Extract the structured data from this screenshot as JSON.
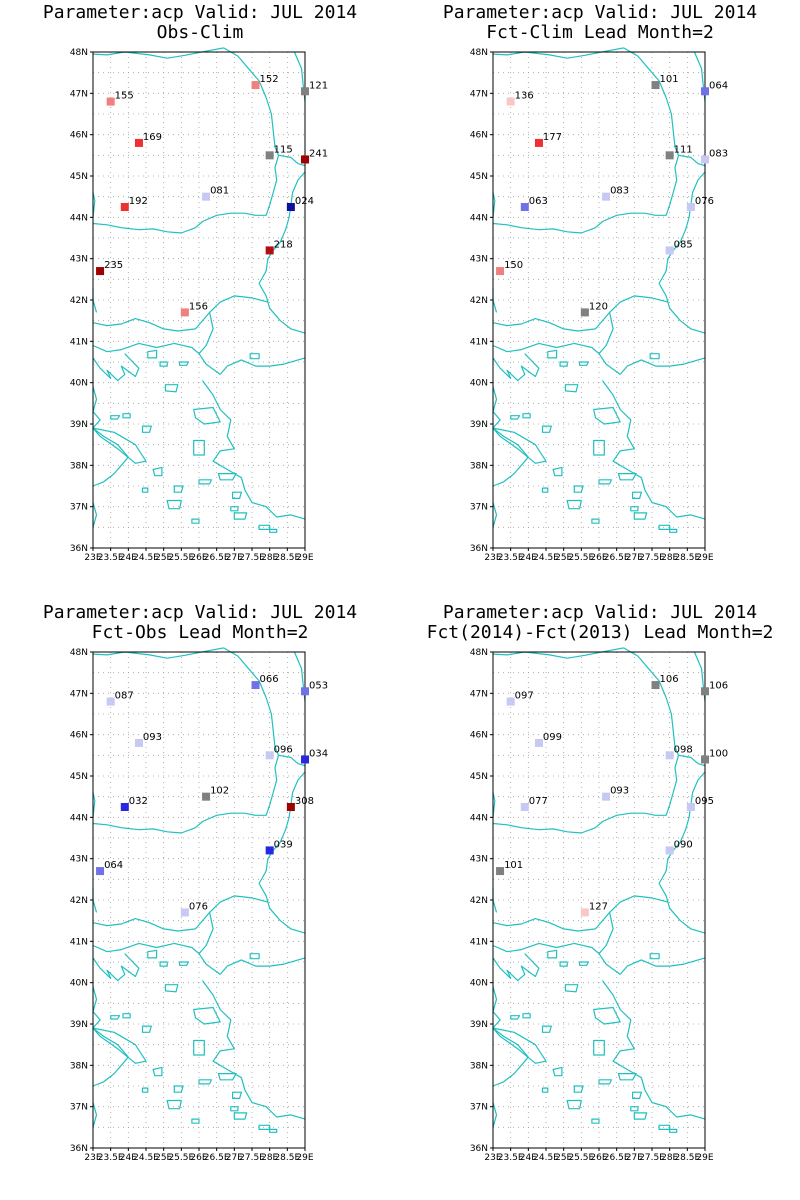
{
  "panels": [
    {
      "title_line1": "Parameter:acp Valid: JUL 2014",
      "title_line2": "Obs-Clim",
      "stations": [
        {
          "lon": 23.5,
          "lat": 46.8,
          "label": "155",
          "color": "#f08080"
        },
        {
          "lon": 27.6,
          "lat": 47.2,
          "label": "152",
          "color": "#f08080"
        },
        {
          "lon": 29.0,
          "lat": 47.05,
          "label": "121",
          "color": "#808080"
        },
        {
          "lon": 24.3,
          "lat": 45.8,
          "label": "169",
          "color": "#ee3030"
        },
        {
          "lon": 28.0,
          "lat": 45.5,
          "label": "115",
          "color": "#808080"
        },
        {
          "lon": 29.0,
          "lat": 45.4,
          "label": "241",
          "color": "#a00000"
        },
        {
          "lon": 26.2,
          "lat": 44.5,
          "label": "081",
          "color": "#c8c8f4"
        },
        {
          "lon": 23.9,
          "lat": 44.25,
          "label": "192",
          "color": "#ee3030"
        },
        {
          "lon": 28.6,
          "lat": 44.25,
          "label": "024",
          "color": "#1010a0"
        },
        {
          "lon": 28.0,
          "lat": 43.2,
          "label": "218",
          "color": "#b01010"
        },
        {
          "lon": 23.2,
          "lat": 42.7,
          "label": "235",
          "color": "#a00000"
        },
        {
          "lon": 25.6,
          "lat": 41.7,
          "label": "156",
          "color": "#f08080"
        }
      ]
    },
    {
      "title_line1": "Parameter:acp Valid: JUL 2014",
      "title_line2": "Fct-Clim Lead Month=2",
      "stations": [
        {
          "lon": 23.5,
          "lat": 46.8,
          "label": "136",
          "color": "#f8c8c8"
        },
        {
          "lon": 27.6,
          "lat": 47.2,
          "label": "101",
          "color": "#808080"
        },
        {
          "lon": 29.0,
          "lat": 47.05,
          "label": "064",
          "color": "#7070e8"
        },
        {
          "lon": 24.3,
          "lat": 45.8,
          "label": "177",
          "color": "#ee3030"
        },
        {
          "lon": 28.0,
          "lat": 45.5,
          "label": "111",
          "color": "#808080"
        },
        {
          "lon": 29.0,
          "lat": 45.4,
          "label": "083",
          "color": "#c8c8f4"
        },
        {
          "lon": 26.2,
          "lat": 44.5,
          "label": "083",
          "color": "#c8c8f4"
        },
        {
          "lon": 23.9,
          "lat": 44.25,
          "label": "063",
          "color": "#7070e8"
        },
        {
          "lon": 28.6,
          "lat": 44.25,
          "label": "076",
          "color": "#c8c8f4"
        },
        {
          "lon": 28.0,
          "lat": 43.2,
          "label": "085",
          "color": "#c8c8f4"
        },
        {
          "lon": 23.2,
          "lat": 42.7,
          "label": "150",
          "color": "#f08080"
        },
        {
          "lon": 25.6,
          "lat": 41.7,
          "label": "120",
          "color": "#808080"
        }
      ]
    },
    {
      "title_line1": "Parameter:acp Valid: JUL 2014",
      "title_line2": "Fct-Obs Lead Month=2",
      "stations": [
        {
          "lon": 23.5,
          "lat": 46.8,
          "label": "087",
          "color": "#c8c8f4"
        },
        {
          "lon": 27.6,
          "lat": 47.2,
          "label": "066",
          "color": "#7070e8"
        },
        {
          "lon": 29.0,
          "lat": 47.05,
          "label": "053",
          "color": "#7070e8"
        },
        {
          "lon": 24.3,
          "lat": 45.8,
          "label": "093",
          "color": "#c8c8f4"
        },
        {
          "lon": 28.0,
          "lat": 45.5,
          "label": "096",
          "color": "#c8c8f4"
        },
        {
          "lon": 29.0,
          "lat": 45.4,
          "label": "034",
          "color": "#2828e0"
        },
        {
          "lon": 26.2,
          "lat": 44.5,
          "label": "102",
          "color": "#808080"
        },
        {
          "lon": 23.9,
          "lat": 44.25,
          "label": "032",
          "color": "#2828e0"
        },
        {
          "lon": 28.6,
          "lat": 44.25,
          "label": "308",
          "color": "#a00000"
        },
        {
          "lon": 28.0,
          "lat": 43.2,
          "label": "039",
          "color": "#2828e0"
        },
        {
          "lon": 23.2,
          "lat": 42.7,
          "label": "064",
          "color": "#7070e8"
        },
        {
          "lon": 25.6,
          "lat": 41.7,
          "label": "076",
          "color": "#c8c8f4"
        }
      ]
    },
    {
      "title_line1": "Parameter:acp Valid: JUL 2014",
      "title_line2": "Fct(2014)-Fct(2013) Lead Month=2",
      "stations": [
        {
          "lon": 23.5,
          "lat": 46.8,
          "label": "097",
          "color": "#c8c8f4"
        },
        {
          "lon": 27.6,
          "lat": 47.2,
          "label": "106",
          "color": "#808080"
        },
        {
          "lon": 29.0,
          "lat": 47.05,
          "label": "106",
          "color": "#808080"
        },
        {
          "lon": 24.3,
          "lat": 45.8,
          "label": "099",
          "color": "#c8c8f4"
        },
        {
          "lon": 28.0,
          "lat": 45.5,
          "label": "098",
          "color": "#c8c8f4"
        },
        {
          "lon": 29.0,
          "lat": 45.4,
          "label": "100",
          "color": "#808080"
        },
        {
          "lon": 26.2,
          "lat": 44.5,
          "label": "093",
          "color": "#c8c8f4"
        },
        {
          "lon": 23.9,
          "lat": 44.25,
          "label": "077",
          "color": "#c8c8f4"
        },
        {
          "lon": 28.6,
          "lat": 44.25,
          "label": "095",
          "color": "#c8c8f4"
        },
        {
          "lon": 28.0,
          "lat": 43.2,
          "label": "090",
          "color": "#c8c8f4"
        },
        {
          "lon": 23.2,
          "lat": 42.7,
          "label": "101",
          "color": "#808080"
        },
        {
          "lon": 25.6,
          "lat": 41.7,
          "label": "127",
          "color": "#f8c8c8"
        }
      ]
    }
  ],
  "axes": {
    "lat_ticks": [
      "36N",
      "37N",
      "38N",
      "39N",
      "40N",
      "41N",
      "42N",
      "43N",
      "44N",
      "45N",
      "46N",
      "47N",
      "48N"
    ],
    "lon_ticks": [
      "23E",
      "23.5E",
      "24E",
      "24.5E",
      "25E",
      "25.5E",
      "26E",
      "26.5E",
      "27E",
      "27.5E",
      "28E",
      "28.5E",
      "29E"
    ],
    "lat_range": [
      36,
      48
    ],
    "lon_range": [
      23,
      29
    ],
    "grid": "dotted"
  },
  "colors": {
    "coastline": "#20c0c0",
    "grid": "#a0a0a0",
    "frame": "#000000"
  }
}
